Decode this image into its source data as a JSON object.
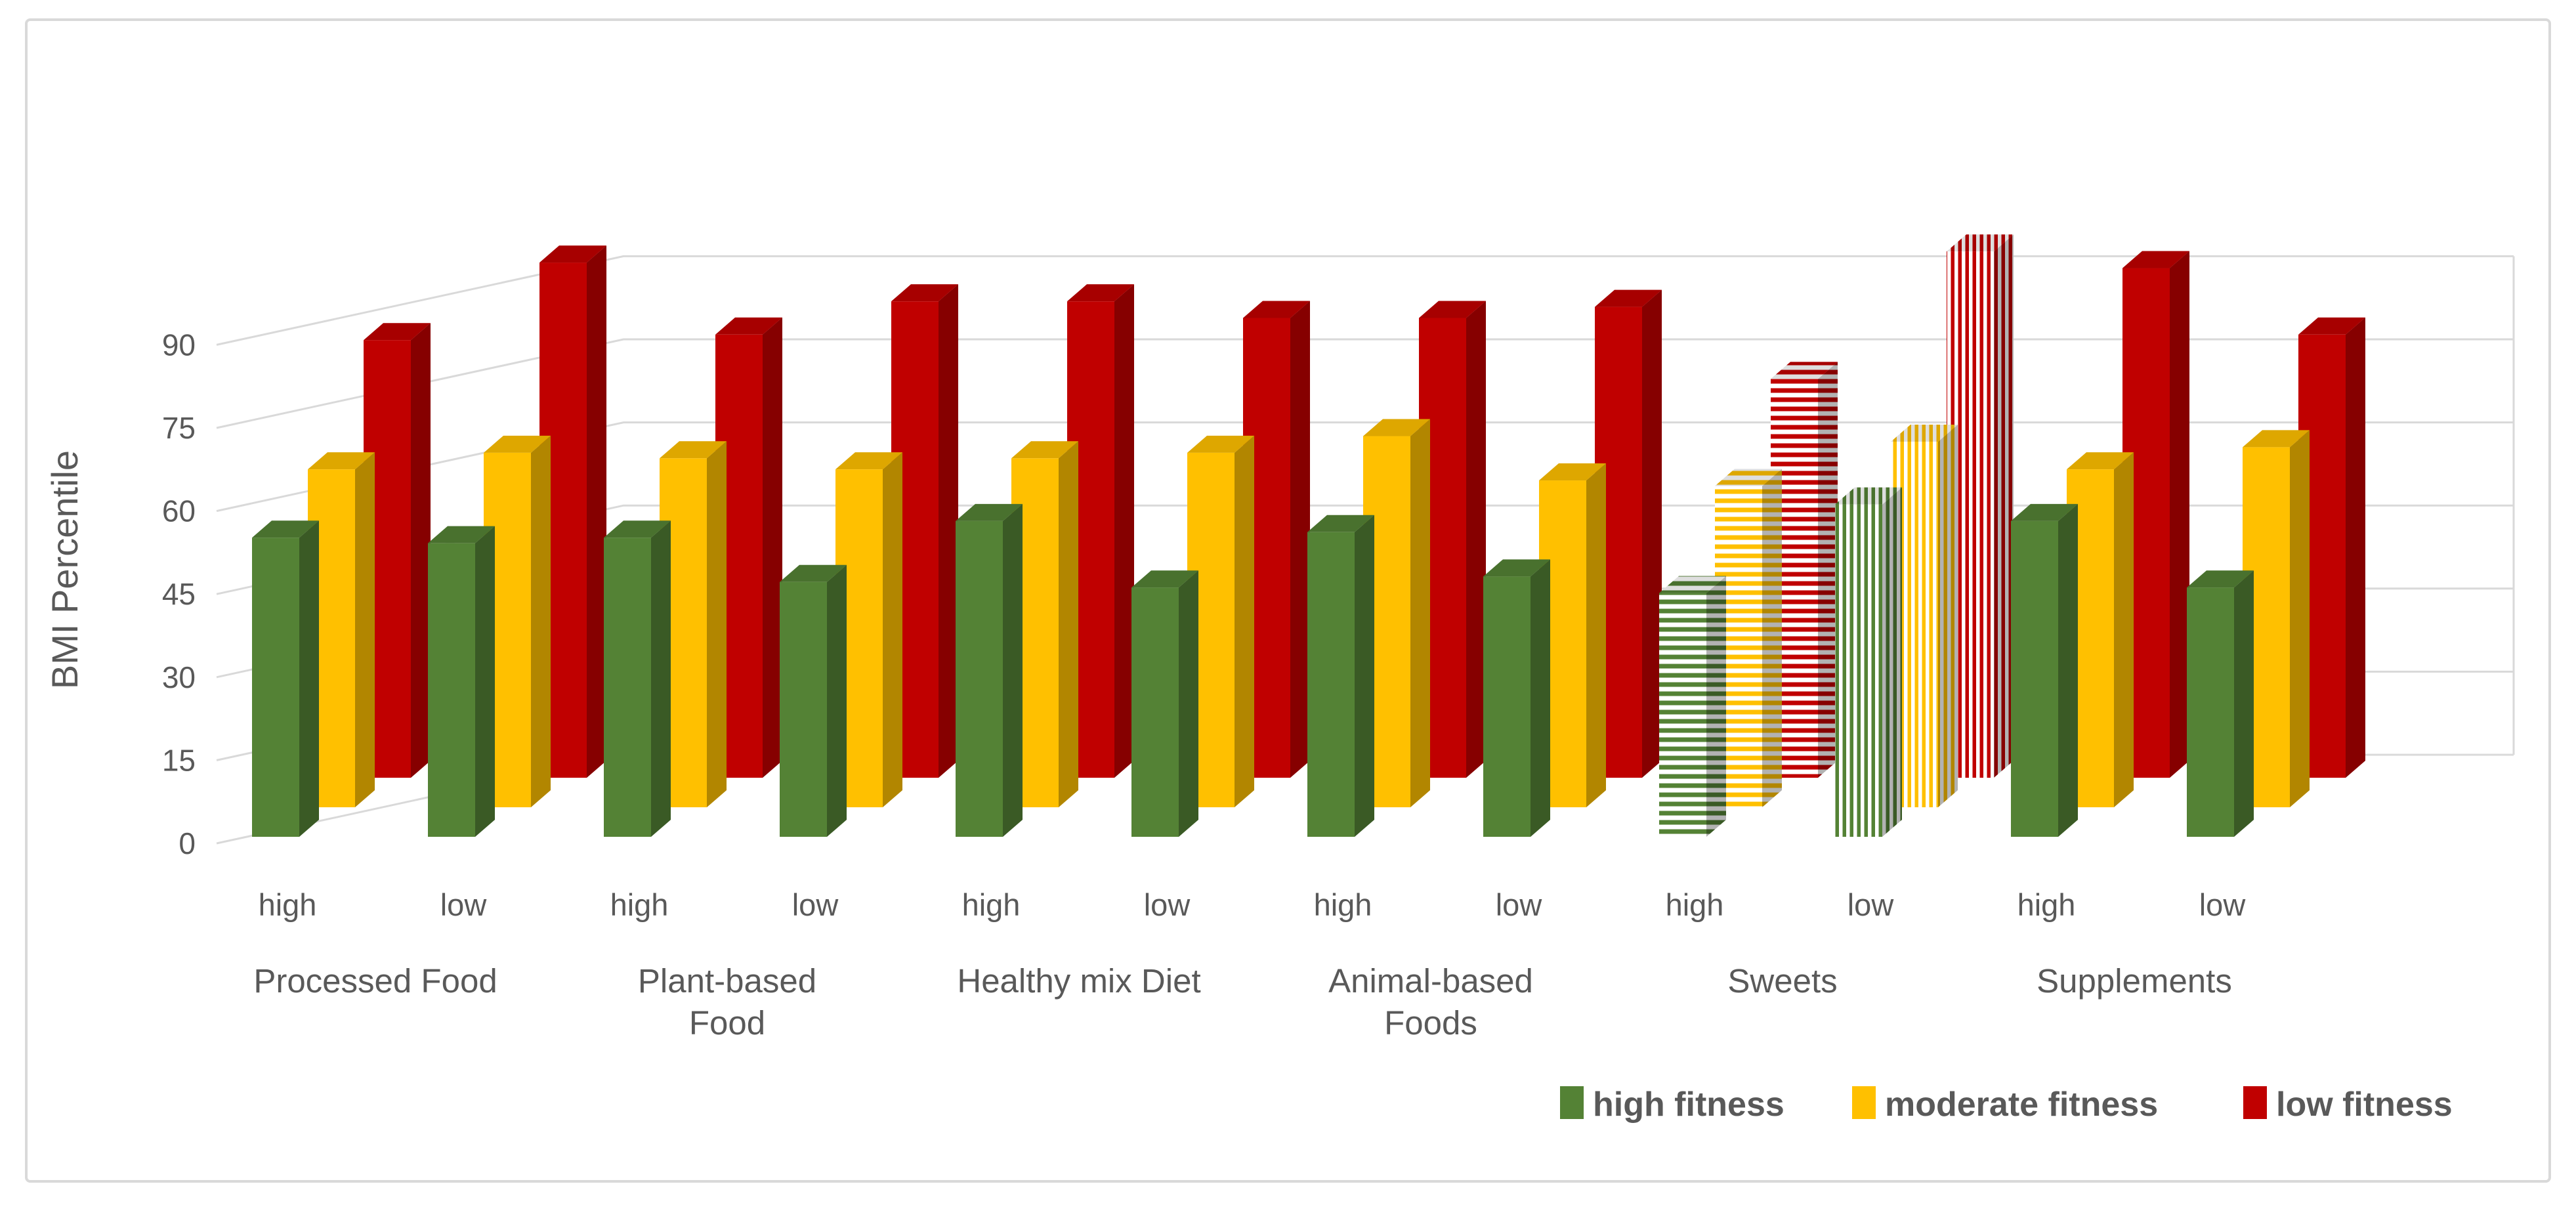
{
  "page": {
    "background": "#ffffff",
    "frame_border_color": "#d9d9d9",
    "grid_color": "#d9d9d9",
    "text_color": "#595959"
  },
  "chart_data": {
    "type": "bar",
    "projection": "3d-clustered-depth",
    "title": "",
    "ylabel": "BMI Percentile",
    "xlabel": "",
    "ylim": [
      0,
      100
    ],
    "y_ticks": [
      0,
      15,
      30,
      45,
      60,
      75,
      90
    ],
    "grid": true,
    "legend_position": "bottom-right",
    "groups": [
      "Processed Food",
      "Plant-based Food",
      "Healthy mix Diet",
      "Animal-based Foods",
      "Sweets",
      "Supplements"
    ],
    "group_label_lines": [
      [
        "Processed Food"
      ],
      [
        "Plant-based",
        "Food"
      ],
      [
        "Healthy mix Diet"
      ],
      [
        "Animal-based",
        "Foods"
      ],
      [
        "Sweets"
      ],
      [
        "Supplements"
      ]
    ],
    "categories": [
      "high",
      "low",
      "high",
      "low",
      "high",
      "low",
      "high",
      "low",
      "high",
      "low",
      "high",
      "low"
    ],
    "bar_fill_styles": [
      "solid",
      "solid",
      "solid",
      "solid",
      "solid",
      "solid",
      "solid",
      "solid",
      "horizontal-stripes",
      "vertical-stripes",
      "solid",
      "solid"
    ],
    "series": [
      {
        "name": "high fitness",
        "color": "#548235",
        "depth_row": "front",
        "values": [
          54,
          53,
          54,
          46,
          57,
          45,
          55,
          47,
          44,
          60,
          57,
          45
        ]
      },
      {
        "name": "moderate fitness",
        "color": "#FFC000",
        "depth_row": "middle",
        "values": [
          61,
          64,
          63,
          61,
          63,
          64,
          67,
          59,
          58,
          66,
          61,
          65
        ]
      },
      {
        "name": "low fitness",
        "color": "#C00000",
        "depth_row": "back",
        "values": [
          79,
          93,
          80,
          86,
          86,
          83,
          83,
          85,
          72,
          95,
          92,
          80
        ]
      }
    ]
  }
}
